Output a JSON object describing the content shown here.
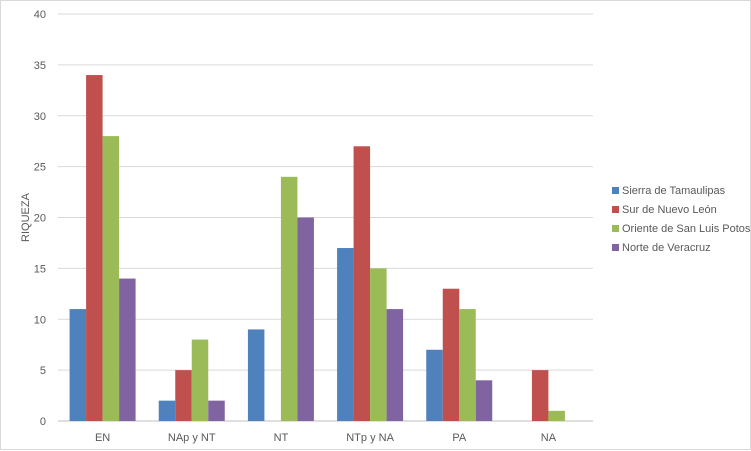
{
  "chart_data": {
    "type": "bar",
    "title": "",
    "xlabel": "",
    "ylabel": "RIQUEZA",
    "ylim": [
      0,
      40
    ],
    "yticks": [
      0,
      5,
      10,
      15,
      20,
      25,
      30,
      35,
      40
    ],
    "grid": true,
    "legend_position": "right",
    "categories": [
      "EN",
      "NAp y NT",
      "NT",
      "NTp y NA",
      "PA",
      "NA"
    ],
    "series": [
      {
        "name": "Sierra de Tamaulipas",
        "color": "#4f81bd",
        "values": [
          11,
          2,
          9,
          17,
          7,
          0
        ]
      },
      {
        "name": "Sur de Nuevo León",
        "color": "#c0504d",
        "values": [
          34,
          5,
          0,
          27,
          13,
          5
        ]
      },
      {
        "name": "Oriente de San Luis Potosí",
        "color": "#9bbb59",
        "values": [
          28,
          8,
          24,
          15,
          11,
          1
        ]
      },
      {
        "name": "Norte de Veracruz",
        "color": "#8064a2",
        "values": [
          14,
          2,
          20,
          11,
          4,
          0
        ]
      }
    ]
  }
}
